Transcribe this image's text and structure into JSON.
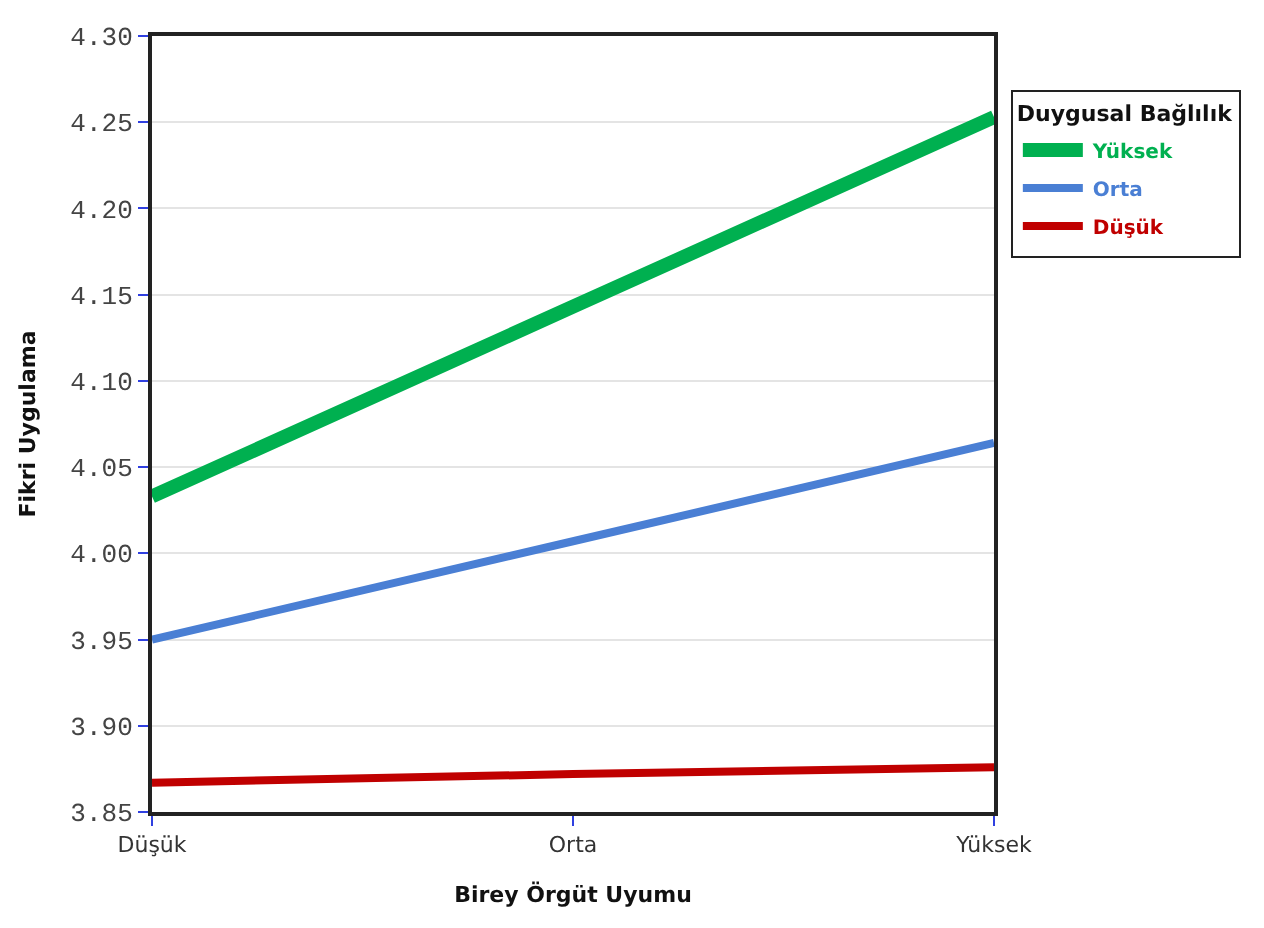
{
  "chart_data": {
    "type": "line",
    "xlabel": "Birey Örgüt Uyumu",
    "ylabel": "Fikri Uygulama",
    "legend_title": "Duygusal Bağlılık",
    "categories": [
      "Düşük",
      "Orta",
      "Yüksek"
    ],
    "series": [
      {
        "name": "Yüksek",
        "color": "#00b050",
        "values": [
          4.033,
          4.143,
          4.253
        ]
      },
      {
        "name": "Orta",
        "color": "#4a7fd4",
        "values": [
          3.95,
          4.007,
          4.064
        ]
      },
      {
        "name": "Düşük",
        "color": "#c00000",
        "values": [
          3.867,
          3.872,
          3.876
        ]
      }
    ],
    "ylim": [
      3.85,
      4.3
    ],
    "yticks": [
      3.85,
      {
        "value": 3.9,
        "label": "3.90"
      },
      3.95,
      {
        "value": 4.0,
        "label": "4.00"
      },
      4.05,
      {
        "value": 4.1,
        "label": "4.10"
      },
      4.15,
      {
        "value": 4.2,
        "label": "4.20"
      },
      4.25,
      {
        "value": 4.3,
        "label": "4.30"
      }
    ],
    "grid": "y",
    "legend": "top right",
    "marker": "none",
    "line_style": "solid"
  }
}
